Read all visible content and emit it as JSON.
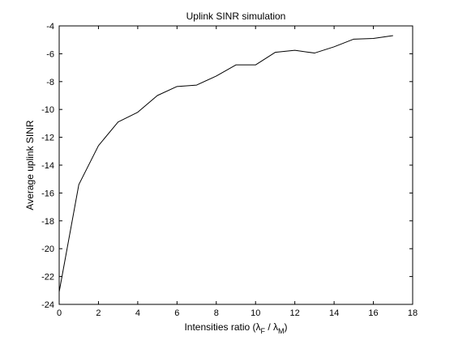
{
  "chart_data": {
    "type": "line",
    "title": "Uplink SINR simulation",
    "xlabel": {
      "prefix": "Intensities ratio (",
      "lambda": "λ",
      "sub_f": "F",
      "slash": " / ",
      "sub_m": "M",
      "suffix": ")"
    },
    "ylabel": "Average uplink SINR",
    "xlim": [
      0,
      18
    ],
    "ylim": [
      -24,
      -4
    ],
    "xticks": [
      0,
      2,
      4,
      6,
      8,
      10,
      12,
      14,
      16,
      18
    ],
    "yticks": [
      -24,
      -22,
      -20,
      -18,
      -16,
      -14,
      -12,
      -10,
      -8,
      -6,
      -4
    ],
    "grid": false,
    "series": [
      {
        "x": [
          0,
          1,
          2,
          3,
          4,
          5,
          6,
          7,
          8,
          9,
          10,
          11,
          12,
          13,
          14,
          15,
          16,
          17
        ],
        "y": [
          -23.1,
          -15.4,
          -12.6,
          -10.9,
          -10.2,
          -9.0,
          -8.35,
          -8.25,
          -7.6,
          -6.8,
          -6.8,
          -5.9,
          -5.75,
          -5.95,
          -5.5,
          -4.95,
          -4.9,
          -4.7
        ],
        "color": "#000000"
      }
    ]
  }
}
